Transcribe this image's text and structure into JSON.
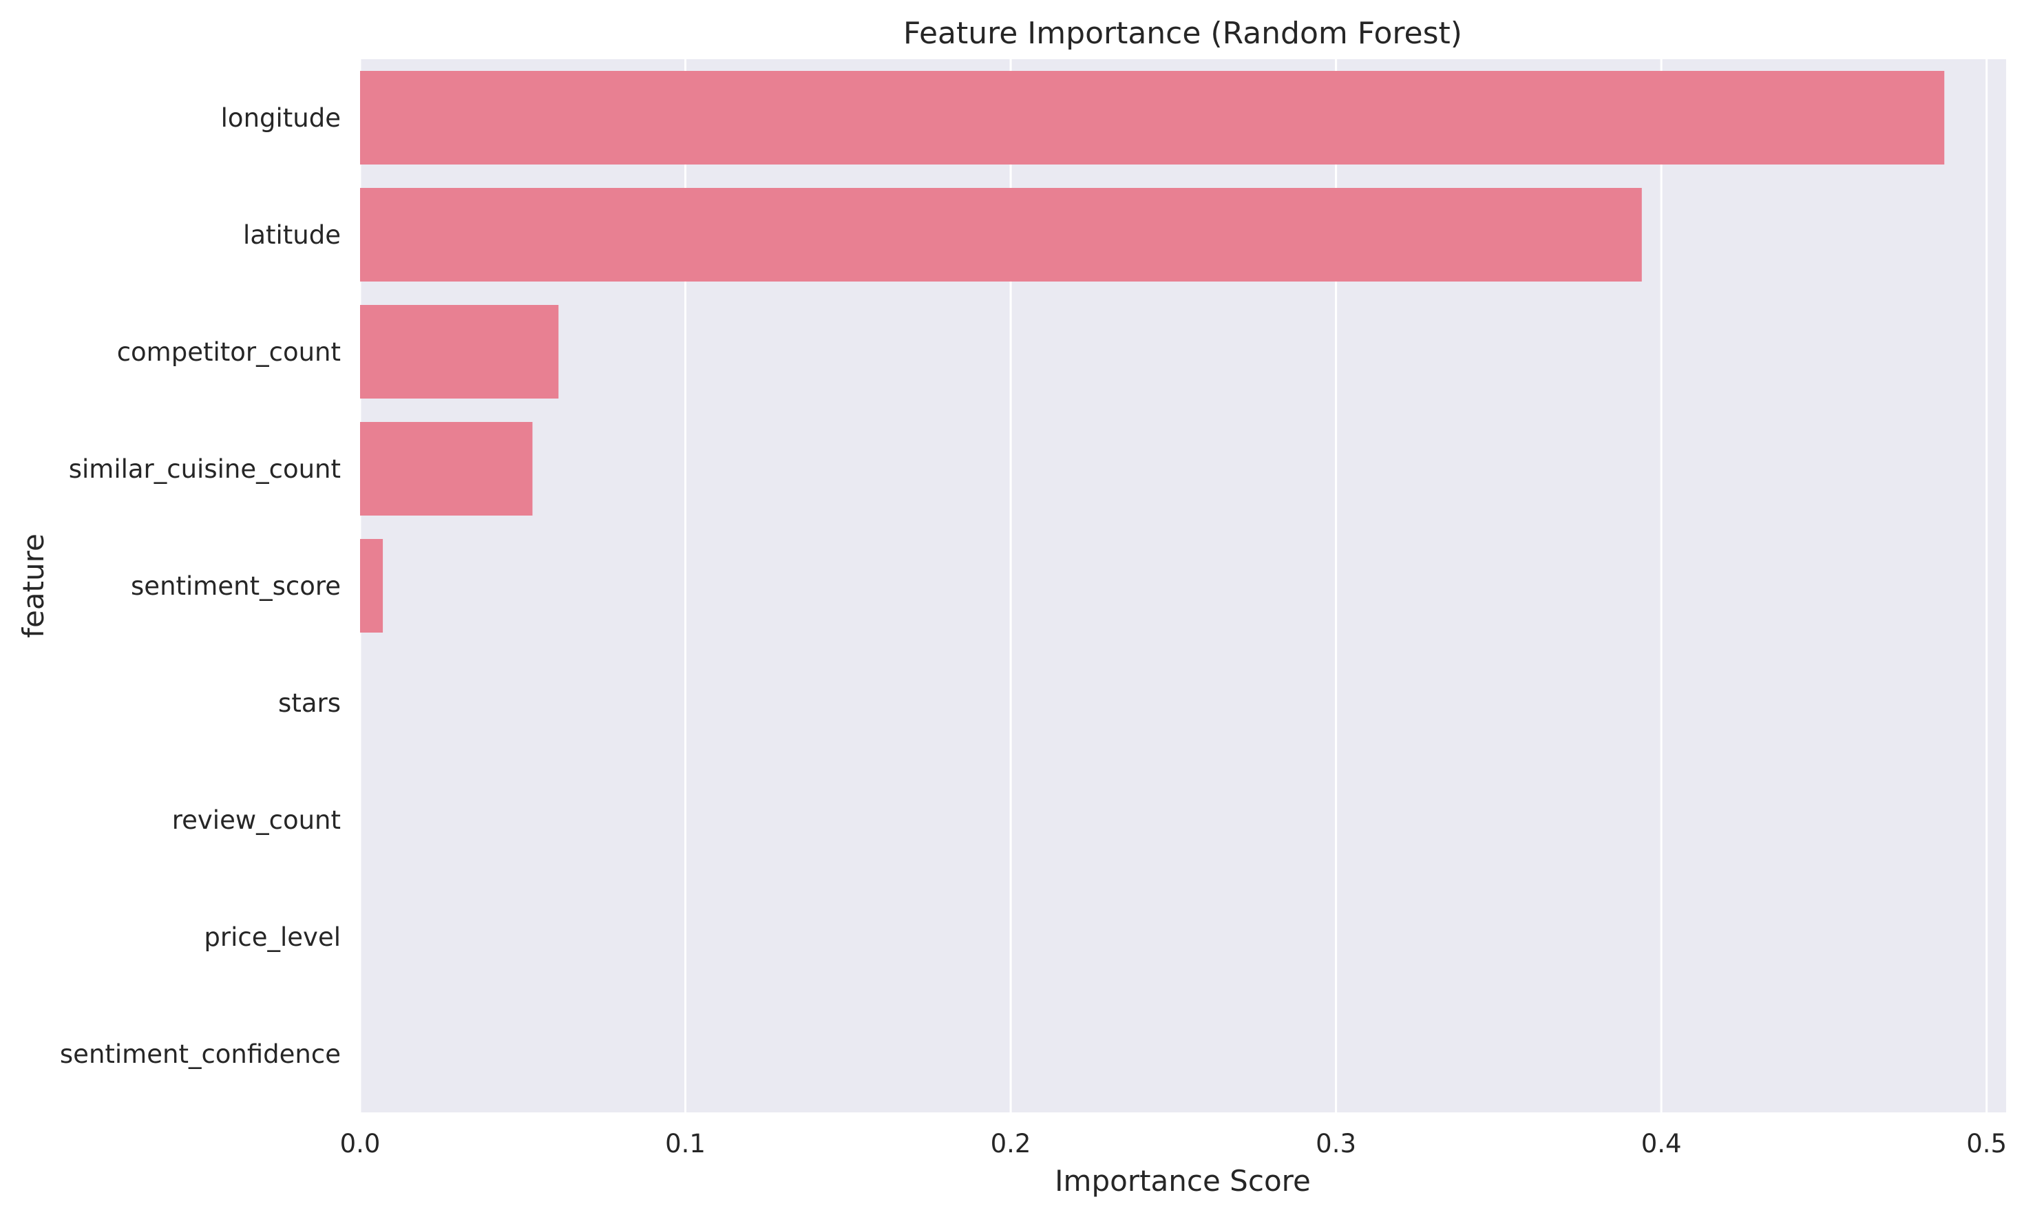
{
  "chart_data": {
    "type": "bar",
    "orientation": "horizontal",
    "title": "Feature Importance (Random Forest)",
    "xlabel": "Importance Score",
    "ylabel": "feature",
    "categories": [
      "longitude",
      "latitude",
      "competitor_count",
      "similar_cuisine_count",
      "sentiment_score",
      "stars",
      "review_count",
      "price_level",
      "sentiment_confidence"
    ],
    "values": [
      0.487,
      0.394,
      0.061,
      0.053,
      0.007,
      0.0,
      0.0,
      0.0,
      0.0
    ],
    "xlim": [
      0,
      0.506
    ],
    "xticks": [
      0.0,
      0.1,
      0.2,
      0.3,
      0.4,
      0.5
    ],
    "xtick_labels": [
      "0.0",
      "0.1",
      "0.2",
      "0.3",
      "0.4",
      "0.5"
    ],
    "grid": true,
    "legend": "none",
    "colors": {
      "bar": "#e88092",
      "plot_background": "#eaeaf2",
      "grid": "#ffffff",
      "text": "#262626"
    }
  }
}
